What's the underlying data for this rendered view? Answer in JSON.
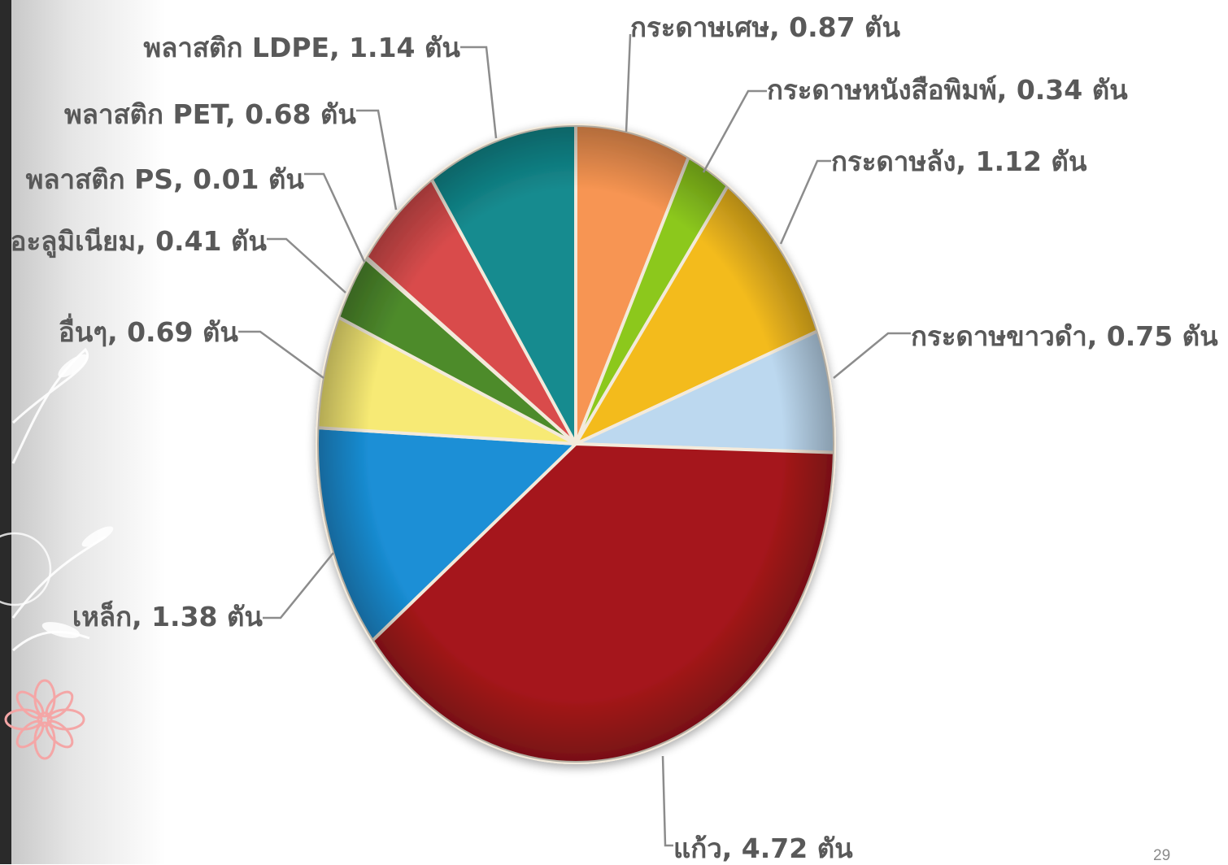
{
  "chart_data": {
    "type": "pie",
    "title": "",
    "slices": [
      {
        "label": "กระดาษเศษ, 0.87 ตัน",
        "value": 0.87,
        "color": "#f79552"
      },
      {
        "label": "กระดาษหนังสือพิมพ์, 0.34 ตัน",
        "value": 0.34,
        "color": "#8cc81e"
      },
      {
        "label": "กระดาษลัง, 1.12 ตัน",
        "value": 1.12,
        "color": "#f3bb1f"
      },
      {
        "label": "กระดาษขาวดำ, 0.75 ตัน",
        "value": 0.75,
        "color": "#bcd8ef"
      },
      {
        "label": "แก้ว, 4.72 ตัน",
        "value": 4.72,
        "color": "#a5171a"
      },
      {
        "label": "เหล็ก, 1.38 ตัน",
        "value": 1.38,
        "color": "#1a8fd6"
      },
      {
        "label": "อื่นๆ, 0.69 ตัน",
        "value": 0.69,
        "color": "#f7ea74"
      },
      {
        "label": "อะลูมิเนียม, 0.41 ตัน",
        "value": 0.41,
        "color": "#4e8b2c"
      },
      {
        "label": "พลาสติก PS, 0.01 ตัน",
        "value": 0.01,
        "color": "#8b2a2a"
      },
      {
        "label": "พลาสติก PET, 0.68 ตัน",
        "value": 0.68,
        "color": "#d94c4c"
      },
      {
        "label": "พลาสติก LDPE, 1.14 ตัน",
        "value": 1.14,
        "color": "#138b8f"
      }
    ]
  },
  "slide": {
    "page_number": "29"
  }
}
